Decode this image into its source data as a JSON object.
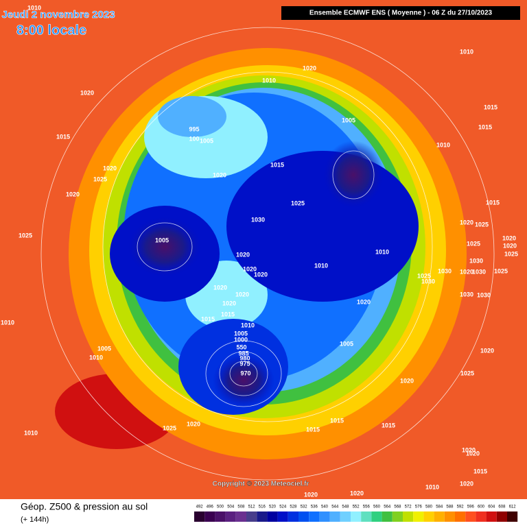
{
  "header": {
    "date": "Jeudi 2 novembre 2023",
    "time": "8:00 locale",
    "run": "Ensemble ECMWF ENS  ( Moyenne )  -  06 Z du 27/10/2023",
    "copyright": "Copyright © 2023 Meteociel.fr"
  },
  "footer": {
    "title": "Géop. Z500 & pression au sol",
    "lead": "(+ 144h)"
  },
  "colorbar": {
    "ticks": [
      492,
      496,
      500,
      504,
      508,
      512,
      516,
      520,
      524,
      528,
      532,
      536,
      540,
      544,
      548,
      552,
      556,
      560,
      564,
      568,
      572,
      576,
      580,
      584,
      588,
      592,
      596,
      600,
      604,
      608,
      612
    ],
    "colors": [
      "#2a0030",
      "#3a0050",
      "#4a1068",
      "#5a2080",
      "#6a3090",
      "#483d8b",
      "#1a1a8a",
      "#0000a0",
      "#0010c8",
      "#0030e0",
      "#0050f0",
      "#1070ff",
      "#3090ff",
      "#50b0ff",
      "#70d0ff",
      "#90f0ff",
      "#60e0c0",
      "#30d080",
      "#40c040",
      "#80d020",
      "#c0e000",
      "#f0f000",
      "#ffd000",
      "#ffb000",
      "#ff9000",
      "#ff7000",
      "#ff5020",
      "#f03020",
      "#d01010",
      "#900000",
      "#400000"
    ]
  },
  "isobar_labels": [
    "1010",
    "1020",
    "1010",
    "1020",
    "1010",
    "1015",
    "1015",
    "995",
    "100",
    "1005",
    "1005",
    "1010",
    "1015",
    "1020",
    "1025",
    "1020",
    "1015",
    "1020",
    "1025",
    "1015",
    "1020",
    "1025",
    "1030",
    "1025",
    "1005",
    "1020",
    "1025",
    "1020",
    "1010",
    "1020",
    "1025",
    "1020",
    "1020",
    "1010",
    "1030",
    "1025",
    "1030",
    "1030",
    "1020",
    "1030",
    "1025",
    "1020",
    "1020",
    "1020",
    "1020",
    "1030",
    "1030",
    "1015",
    "1015",
    "1010",
    "1010",
    "1005",
    "1000",
    "1005",
    "1005",
    "1010",
    "550",
    "985",
    "980",
    "975",
    "970",
    "1020",
    "1025",
    "1020",
    "1025",
    "1020",
    "1015",
    "1015",
    "1015",
    "1010",
    "1020",
    "1020",
    "1015",
    "1020",
    "1020",
    "1010",
    "1020"
  ]
}
